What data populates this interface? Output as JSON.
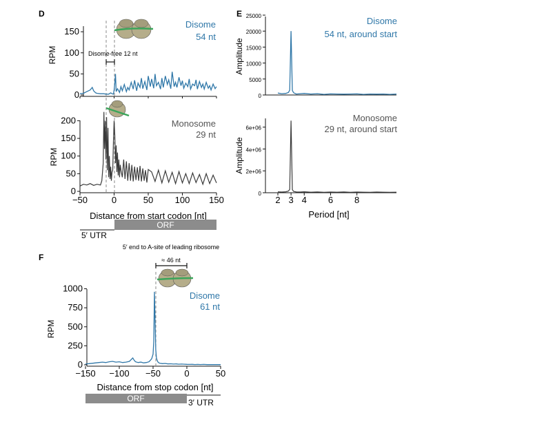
{
  "colors": {
    "disome": "#2f77a8",
    "monosome": "#3a3a3a",
    "axis": "#111111",
    "orf_box": "#8c8c8c",
    "ribosome": "#b5ad8a",
    "mrna": "#3aa55a"
  },
  "panels": {
    "D": {
      "letter": "D"
    },
    "E": {
      "letter": "E"
    },
    "F": {
      "letter": "F"
    }
  },
  "chart_data": [
    {
      "id": "D-disome",
      "type": "line",
      "panel": "D",
      "ylabel": "RPM",
      "xlim": [
        -50,
        150
      ],
      "ylim": [
        0,
        160
      ],
      "yticks": [
        "0",
        "50",
        "100",
        "150"
      ],
      "legend": [
        "Disome",
        "54 nt"
      ],
      "annotation": "Disome-free 12 nt",
      "series": [
        {
          "name": "Disome",
          "x": [
            -50,
            -45,
            -40,
            -35,
            -32,
            -30,
            -27,
            -25,
            -20,
            -15,
            -12,
            -10,
            -8,
            -5,
            -3,
            -1,
            0,
            1,
            2,
            3,
            5,
            8,
            10,
            12,
            15,
            18,
            20,
            22,
            25,
            28,
            30,
            33,
            35,
            38,
            40,
            42,
            45,
            48,
            50,
            53,
            55,
            58,
            60,
            62,
            65,
            68,
            70,
            72,
            75,
            78,
            80,
            83,
            85,
            88,
            90,
            92,
            95,
            98,
            100,
            102,
            105,
            108,
            110,
            112,
            115,
            118,
            120,
            122,
            125,
            128,
            130,
            132,
            135,
            138,
            140,
            142,
            145,
            148,
            150
          ],
          "y": [
            3,
            4,
            8,
            12,
            18,
            10,
            5,
            4,
            3,
            3,
            2,
            2,
            2,
            5,
            3,
            2,
            12,
            28,
            50,
            8,
            15,
            6,
            20,
            10,
            25,
            8,
            18,
            12,
            30,
            14,
            35,
            10,
            28,
            18,
            40,
            15,
            32,
            12,
            45,
            20,
            38,
            16,
            50,
            22,
            30,
            14,
            40,
            18,
            45,
            25,
            36,
            15,
            55,
            20,
            30,
            18,
            42,
            22,
            34,
            16,
            28,
            20,
            38,
            14,
            26,
            22,
            36,
            14,
            32,
            18,
            26,
            14,
            30,
            16,
            22,
            12,
            26,
            15,
            20
          ]
        }
      ]
    },
    {
      "id": "D-monosome",
      "type": "line",
      "panel": "D",
      "ylabel": "RPM",
      "xlabel": "Distance from start codon [nt]",
      "xlim": [
        -50,
        150
      ],
      "ylim": [
        0,
        230
      ],
      "yticks": [
        "0",
        "50",
        "100",
        "150",
        "200"
      ],
      "xticks": [
        "−50",
        "0",
        "50",
        "100",
        "150"
      ],
      "legend": [
        "Monosome",
        "29 nt"
      ],
      "regions": [
        "5′ UTR",
        "ORF"
      ],
      "series": [
        {
          "name": "Monosome",
          "x": [
            -50,
            -45,
            -40,
            -35,
            -30,
            -25,
            -20,
            -18,
            -16,
            -15,
            -14,
            -13,
            -12,
            -11,
            -10,
            -9,
            -8,
            -7,
            -6,
            -5,
            -4,
            -3,
            -2,
            -1,
            0,
            1,
            2,
            3,
            4,
            5,
            6,
            7,
            8,
            9,
            10,
            12,
            14,
            16,
            18,
            20,
            22,
            24,
            26,
            28,
            30,
            32,
            34,
            36,
            38,
            40,
            42,
            44,
            46,
            48,
            50,
            55,
            60,
            65,
            70,
            75,
            80,
            85,
            90,
            95,
            100,
            105,
            110,
            115,
            120,
            125,
            130,
            135,
            140,
            145,
            150
          ],
          "y": [
            15,
            20,
            18,
            22,
            17,
            20,
            18,
            30,
            80,
            225,
            120,
            200,
            90,
            210,
            60,
            180,
            40,
            100,
            35,
            70,
            30,
            55,
            60,
            140,
            200,
            160,
            80,
            130,
            55,
            110,
            45,
            90,
            40,
            75,
            60,
            40,
            90,
            35,
            85,
            30,
            80,
            30,
            75,
            28,
            70,
            32,
            68,
            30,
            72,
            28,
            65,
            30,
            60,
            25,
            62,
            55,
            28,
            60,
            24,
            58,
            26,
            54,
            22,
            56,
            24,
            50,
            22,
            52,
            25,
            48,
            20,
            50,
            22,
            46,
            24
          ]
        }
      ]
    },
    {
      "id": "E-disome",
      "type": "line",
      "panel": "E",
      "ylabel": "Amplitude",
      "ylim": [
        0,
        25000
      ],
      "yticks": [
        "0",
        "5000",
        "10000",
        "15000",
        "20000",
        "25000"
      ],
      "legend": [
        "Disome",
        "54 nt, around start"
      ],
      "series": [
        {
          "name": "Disome",
          "x": [
            2,
            2.3,
            2.6,
            2.8,
            2.9,
            3.0,
            3.1,
            3.2,
            3.4,
            3.7,
            4,
            4.5,
            5,
            5.5,
            6,
            6.5,
            7,
            7.5,
            8,
            8.5,
            9,
            9.5,
            10,
            10.5,
            11
          ],
          "y": [
            600,
            400,
            500,
            800,
            1500,
            20000,
            1400,
            700,
            300,
            400,
            500,
            300,
            400,
            200,
            350,
            300,
            250,
            300,
            350,
            200,
            300,
            250,
            300,
            200,
            300
          ]
        }
      ]
    },
    {
      "id": "E-monosome",
      "type": "line",
      "panel": "E",
      "ylabel": "Amplitude",
      "xlabel": "Period [nt]",
      "ylim": [
        0,
        6800000
      ],
      "yticks": [
        "0",
        "2e+06",
        "4e+06",
        "6e+06"
      ],
      "xticks": [
        "2",
        "3",
        "4",
        "6",
        "8"
      ],
      "legend": [
        "Monosome",
        "29 nt, around start"
      ],
      "series": [
        {
          "name": "Monosome",
          "x": [
            2,
            2.3,
            2.6,
            2.8,
            2.9,
            3.0,
            3.1,
            3.2,
            3.4,
            3.7,
            4,
            4.5,
            5,
            5.5,
            6,
            6.5,
            7,
            7.5,
            8,
            8.5,
            9,
            9.5,
            10,
            10.5,
            11
          ],
          "y": [
            80000,
            60000,
            90000,
            150000,
            300000,
            6600000,
            280000,
            120000,
            70000,
            60000,
            90000,
            50000,
            70000,
            40000,
            60000,
            50000,
            70000,
            40000,
            60000,
            50000,
            40000,
            60000,
            50000,
            40000,
            50000
          ]
        }
      ]
    },
    {
      "id": "F-disome",
      "type": "line",
      "panel": "F",
      "ylabel": "RPM",
      "xlabel": "Distance from stop codon [nt]",
      "xlim": [
        -150,
        50
      ],
      "ylim": [
        0,
        1050
      ],
      "yticks": [
        "0",
        "250",
        "500",
        "750",
        "1000"
      ],
      "xticks": [
        "−150",
        "−100",
        "−50",
        "0",
        "50"
      ],
      "legend": [
        "Disome",
        "61 nt"
      ],
      "annotation": [
        "5′ end to A-site of leading ribosome",
        "≈ 46 nt"
      ],
      "regions": [
        "ORF",
        "3′ UTR"
      ],
      "series": [
        {
          "name": "Disome",
          "x": [
            -150,
            -145,
            -140,
            -135,
            -130,
            -125,
            -120,
            -115,
            -110,
            -105,
            -100,
            -95,
            -90,
            -85,
            -80,
            -78,
            -76,
            -72,
            -68,
            -64,
            -60,
            -56,
            -54,
            -52,
            -50,
            -49,
            -48,
            -47,
            -46,
            -45,
            -44,
            -43,
            -42,
            -40,
            -36,
            -32,
            -28,
            -24,
            -20,
            -16,
            -12,
            -8,
            -4,
            0,
            4,
            8,
            12,
            16,
            20,
            25,
            30,
            35,
            40,
            45,
            50
          ],
          "y": [
            10,
            15,
            20,
            25,
            30,
            35,
            30,
            40,
            45,
            35,
            40,
            30,
            35,
            45,
            90,
            60,
            40,
            30,
            35,
            25,
            30,
            40,
            60,
            80,
            140,
            300,
            960,
            600,
            200,
            90,
            60,
            40,
            30,
            20,
            15,
            18,
            12,
            14,
            10,
            12,
            8,
            10,
            8,
            6,
            5,
            6,
            4,
            5,
            4,
            5,
            3,
            4,
            3,
            4,
            3
          ]
        }
      ]
    }
  ]
}
